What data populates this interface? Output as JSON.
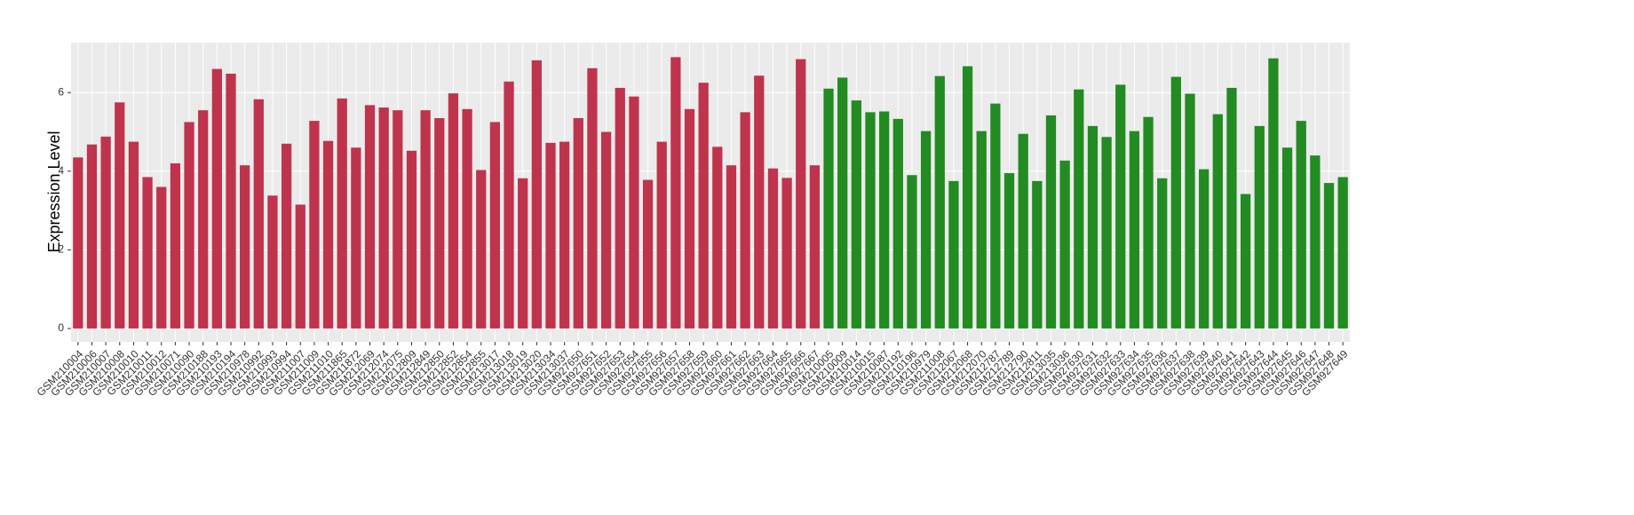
{
  "chart_data": {
    "type": "bar",
    "y_label": "Expression Level",
    "ylim": [
      -0.34,
      7.27
    ],
    "yticks": [
      0,
      2,
      4,
      6
    ],
    "grid": true,
    "groups": [
      {
        "color": "#c0334d",
        "categories": [
          "GSM210004",
          "GSM210006",
          "GSM210007",
          "GSM210008",
          "GSM210010",
          "GSM210011",
          "GSM210012",
          "GSM210071",
          "GSM210090",
          "GSM210188",
          "GSM210193",
          "GSM210194",
          "GSM210978",
          "GSM210992",
          "GSM210993",
          "GSM210994",
          "GSM211007",
          "GSM211009",
          "GSM211010",
          "GSM211865",
          "GSM211872",
          "GSM212069",
          "GSM212074",
          "GSM212075",
          "GSM212809",
          "GSM212849",
          "GSM212850",
          "GSM212852",
          "GSM212854",
          "GSM212855",
          "GSM213017",
          "GSM213018",
          "GSM213019",
          "GSM213020",
          "GSM213034",
          "GSM213037",
          "GSM927650",
          "GSM927651",
          "GSM927652",
          "GSM927653",
          "GSM927654",
          "GSM927655",
          "GSM927656",
          "GSM927657",
          "GSM927658",
          "GSM927659",
          "GSM927660",
          "GSM927661",
          "GSM927662",
          "GSM927663",
          "GSM927664",
          "GSM927665",
          "GSM927666",
          "GSM927667"
        ],
        "values": [
          4.35,
          4.68,
          4.88,
          5.75,
          4.75,
          3.85,
          3.6,
          4.2,
          5.25,
          5.55,
          6.6,
          6.48,
          4.15,
          5.83,
          3.38,
          4.7,
          3.15,
          5.28,
          4.77,
          5.85,
          4.6,
          5.68,
          5.62,
          5.55,
          4.52,
          5.55,
          5.35,
          5.98,
          5.58,
          4.03,
          5.25,
          6.28,
          3.82,
          6.82,
          4.72,
          4.75,
          5.35,
          6.62,
          5.0,
          6.12,
          5.9,
          3.78,
          4.75,
          6.9,
          5.58,
          6.25,
          4.62,
          4.15,
          5.5,
          6.43,
          4.07,
          3.83,
          6.85,
          4.15
        ]
      },
      {
        "color": "#228b22",
        "categories": [
          "GSM210005",
          "GSM210009",
          "GSM210014",
          "GSM210015",
          "GSM210087",
          "GSM210192",
          "GSM210196",
          "GSM210979",
          "GSM211008",
          "GSM212067",
          "GSM212068",
          "GSM212070",
          "GSM212787",
          "GSM212789",
          "GSM212790",
          "GSM212811",
          "GSM213035",
          "GSM213036",
          "GSM927630",
          "GSM927631",
          "GSM927632",
          "GSM927633",
          "GSM927634",
          "GSM927635",
          "GSM927636",
          "GSM927637",
          "GSM927638",
          "GSM927639",
          "GSM927640",
          "GSM927641",
          "GSM927642",
          "GSM927643",
          "GSM927644",
          "GSM927645",
          "GSM927646",
          "GSM927647",
          "GSM927648",
          "GSM927649"
        ],
        "values": [
          6.1,
          6.38,
          5.8,
          5.5,
          5.52,
          5.33,
          3.9,
          5.02,
          6.42,
          3.75,
          6.67,
          5.02,
          5.72,
          3.95,
          4.95,
          3.75,
          5.42,
          4.27,
          6.08,
          5.15,
          4.87,
          6.2,
          5.02,
          5.38,
          3.82,
          6.4,
          5.97,
          4.05,
          5.45,
          6.12,
          3.42,
          5.15,
          6.87,
          4.6,
          5.28,
          4.4,
          3.7,
          3.85
        ]
      }
    ]
  }
}
